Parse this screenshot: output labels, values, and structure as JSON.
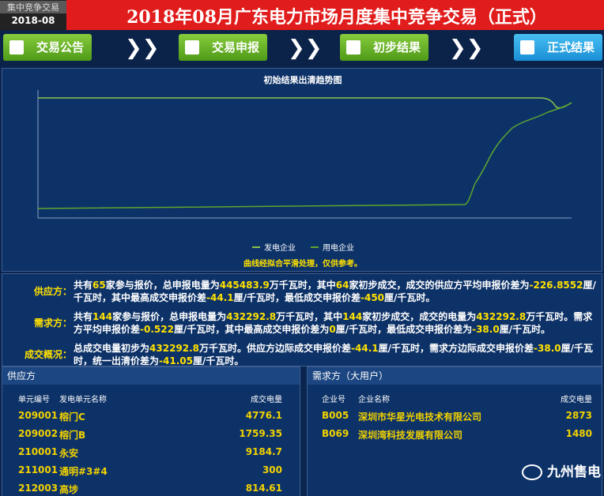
{
  "header": {
    "badge_top": "集中竞争交易",
    "badge_date": "2018-08",
    "title": "2018年08月广东电力市场月度集中竞争交易（正式）"
  },
  "nav": [
    "交易公告",
    "交易申报",
    "初步结果",
    "正式结果"
  ],
  "trend": {
    "title": "初始结果出清趋势图",
    "legend": [
      "发电企业",
      "用电企业"
    ],
    "note": "曲线经拟合平滑处理，仅供参考。"
  },
  "summary": [
    {
      "label": "供应方：",
      "parts": [
        "共有",
        "65",
        "家参与报价，总申报电量为",
        "445483.9",
        "万千瓦时，其中",
        "64",
        "家初步成交，成交的供应方平均申报价差为",
        "-226.8552",
        "厘/千瓦时，其中最高成交申报价差",
        "-44.1",
        "厘/千瓦时，最低成交申报价差",
        "-450",
        "厘/千瓦时。"
      ]
    },
    {
      "label": "需求方：",
      "parts": [
        "共有",
        "144",
        "家参与报价，总申报电量为",
        "432292.8",
        "万千瓦时，其中",
        "144",
        "家初步成交，成交的电量为",
        "432292.8",
        "万千瓦时。需求方平均申报价差",
        "-0.522",
        "厘/千瓦时，其中最高成交申报价差为",
        "0",
        "厘/千瓦时，最低成交申报价差为",
        "-38.0",
        "厘/千瓦时。"
      ]
    },
    {
      "label": "成交概况：",
      "parts": [
        "总成交电量初步为",
        "432292.8",
        "万千瓦时。供应方边际成交申报价差",
        "-44.1",
        "厘/千瓦时，需求方边际成交申报价差",
        "-38.0",
        "厘/千瓦时，统一出清价差为",
        "-41.05",
        "厘/千瓦时。"
      ]
    }
  ],
  "supply_table": {
    "title": "供应方",
    "columns": [
      "单元编号",
      "发电单元名称",
      "成交电量"
    ],
    "rows": [
      [
        "209001",
        "榕门C",
        "4776.1"
      ],
      [
        "209002",
        "榕门B",
        "1759.35"
      ],
      [
        "210001",
        "永安",
        "9184.7"
      ],
      [
        "211001",
        "通明#3#4",
        "300"
      ],
      [
        "212003",
        "高埗",
        "814.61"
      ]
    ]
  },
  "demand_table": {
    "title": "需求方（大用户）",
    "columns": [
      "企业号",
      "企业名称",
      "成交电量"
    ],
    "rows": [
      [
        "B005",
        "深圳市华星光电技术有限公司",
        "2873"
      ],
      [
        "B069",
        "深圳湾科技发展有限公司",
        "1480"
      ]
    ]
  },
  "watermark": "九州售电"
}
